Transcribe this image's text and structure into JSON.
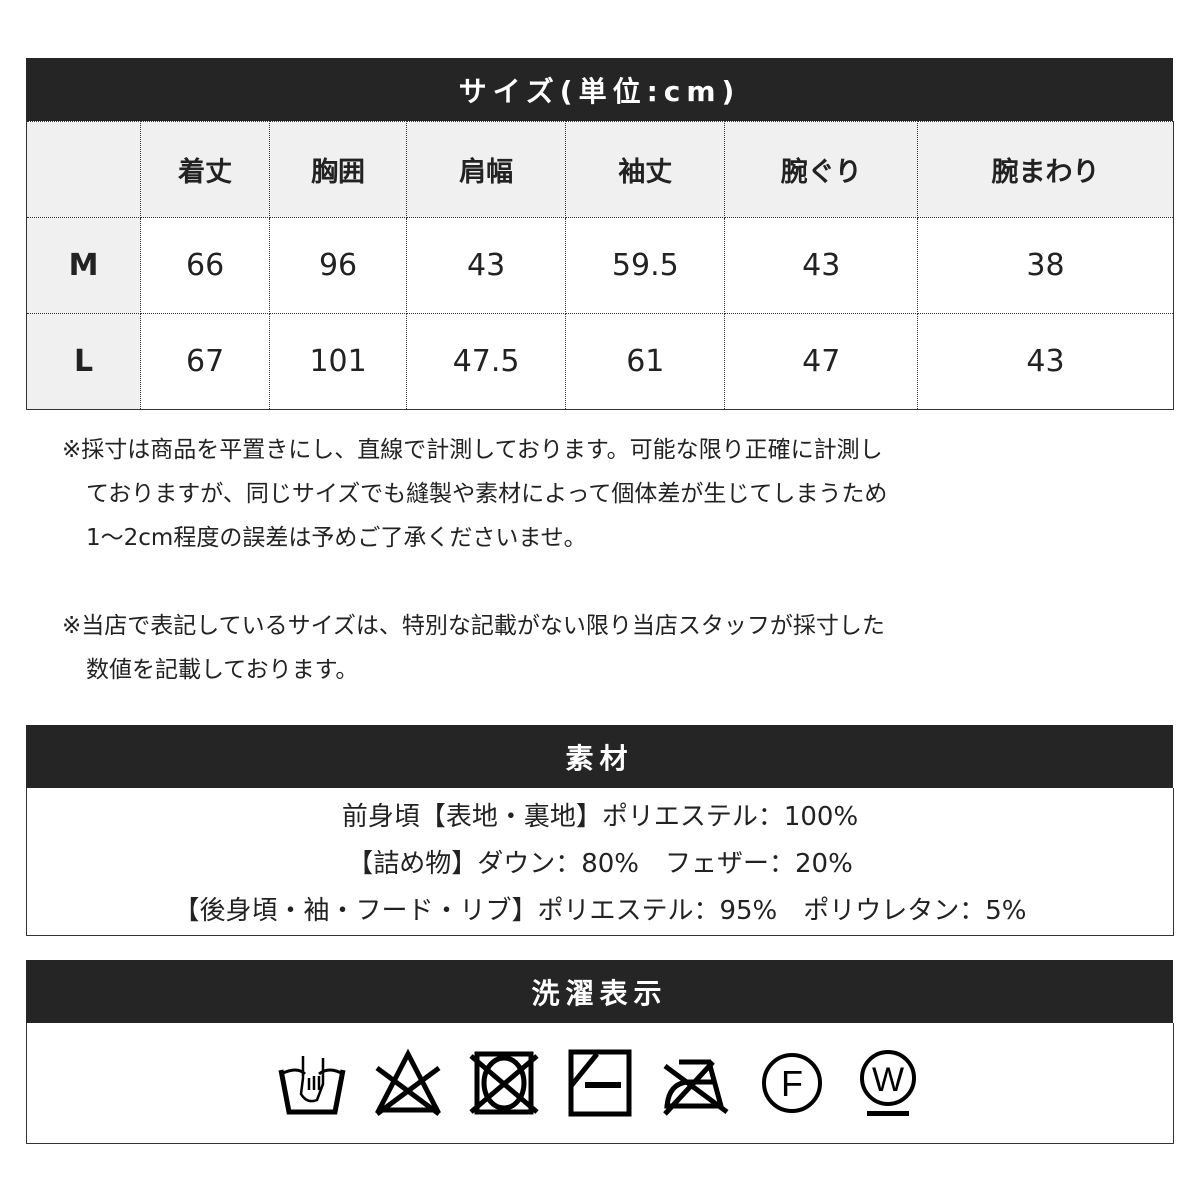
{
  "size": {
    "title": "サイズ(単位:cm)",
    "headers": [
      "",
      "着丈",
      "胸囲",
      "肩幅",
      "袖丈",
      "腕ぐり",
      "腕まわり"
    ],
    "rows": [
      {
        "label": "M",
        "values": [
          "66",
          "96",
          "43",
          "59.5",
          "43",
          "38"
        ]
      },
      {
        "label": "L",
        "values": [
          "67",
          "101",
          "47.5",
          "61",
          "47",
          "43"
        ]
      }
    ]
  },
  "notes": {
    "n1": [
      "※採寸は商品を平置きにし、直線で計測しております。可能な限り正確に計測し",
      "ておりますが、同じサイズでも縫製や素材によって個体差が生じてしまうため",
      "1〜2cm程度の誤差は予めご了承くださいませ。"
    ],
    "n2": [
      "※当店で表記しているサイズは、特別な記載がない限り当店スタッフが採寸した",
      "数値を記載しております。"
    ]
  },
  "material": {
    "title": "素材",
    "lines": [
      "前身頃【表地・裏地】ポリエステル：100%",
      "【詰め物】ダウン：80%　フェザー：20%",
      "【後身頃・袖・フード・リブ】ポリエステル：95%　ポリウレタン：5%"
    ]
  },
  "care": {
    "title": "洗濯表示",
    "icons": [
      "hand-wash-icon",
      "no-bleach-icon",
      "no-tumble-dry-icon",
      "line-dry-shade-icon",
      "no-iron-icon",
      "dry-clean-f-icon",
      "wet-clean-w-icon"
    ],
    "f": "F",
    "w": "W"
  }
}
